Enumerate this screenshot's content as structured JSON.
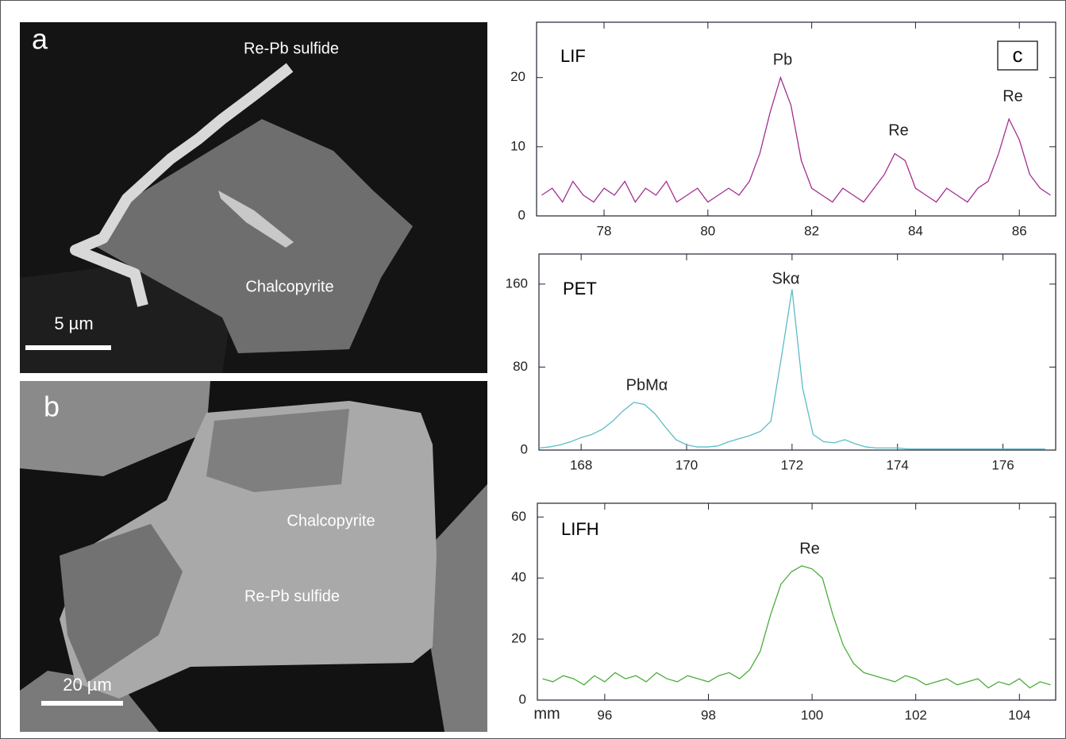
{
  "panels": {
    "a": {
      "label": "a",
      "sulfide": "Re-Pb sulfide",
      "mineral": "Chalcopyrite",
      "scale": "5 µm"
    },
    "b": {
      "label": "b",
      "mineral": "Chalcopyrite",
      "sulfide": "Re-Pb sulfide",
      "scale": "20 µm"
    },
    "c": {
      "label": "c"
    }
  },
  "chart_data": [
    {
      "type": "line",
      "annotations": [
        "Pb",
        "Re",
        "Re"
      ],
      "x": [
        76.8,
        77.0,
        77.2,
        77.4,
        77.6,
        77.8,
        78.0,
        78.2,
        78.4,
        78.6,
        78.8,
        79.0,
        79.2,
        79.4,
        79.6,
        79.8,
        80.0,
        80.2,
        80.4,
        80.6,
        80.8,
        81.0,
        81.2,
        81.4,
        81.6,
        81.8,
        82.0,
        82.2,
        82.4,
        82.6,
        82.8,
        83.0,
        83.2,
        83.4,
        83.6,
        83.8,
        84.0,
        84.2,
        84.4,
        84.6,
        84.8,
        85.0,
        85.2,
        85.4,
        85.6,
        85.8,
        86.0,
        86.2,
        86.4,
        86.6
      ],
      "series": [
        {
          "name": "LIF",
          "color": "#a3308f",
          "values": [
            3,
            4,
            2,
            5,
            3,
            2,
            4,
            3,
            5,
            2,
            4,
            3,
            5,
            2,
            3,
            4,
            2,
            3,
            4,
            3,
            5,
            9,
            15,
            20,
            16,
            8,
            4,
            3,
            2,
            4,
            3,
            2,
            4,
            6,
            9,
            8,
            4,
            3,
            2,
            4,
            3,
            2,
            4,
            5,
            9,
            14,
            11,
            6,
            4,
            3
          ]
        }
      ],
      "xlim": [
        76.7,
        86.7
      ],
      "ylim": [
        0,
        28
      ],
      "xticks": [
        78,
        80,
        82,
        84,
        86
      ],
      "yticks": [
        0,
        10,
        20
      ]
    },
    {
      "type": "line",
      "annotations": [
        "PbMα",
        "Skα"
      ],
      "x": [
        167.2,
        167.4,
        167.6,
        167.8,
        168.0,
        168.2,
        168.4,
        168.6,
        168.8,
        169.0,
        169.2,
        169.4,
        169.6,
        169.8,
        170.0,
        170.2,
        170.4,
        170.6,
        170.8,
        171.0,
        171.2,
        171.4,
        171.6,
        171.8,
        172.0,
        172.2,
        172.4,
        172.6,
        172.8,
        173.0,
        173.2,
        173.4,
        173.6,
        173.8,
        174.0,
        174.2,
        174.4,
        174.6,
        174.8,
        175.0,
        175.2,
        175.4,
        175.6,
        175.8,
        176.0,
        176.2,
        176.4,
        176.6,
        176.8
      ],
      "series": [
        {
          "name": "PET",
          "color": "#5bbcc6",
          "values": [
            2,
            3,
            5,
            8,
            12,
            15,
            20,
            28,
            38,
            46,
            44,
            35,
            22,
            10,
            5,
            3,
            3,
            4,
            8,
            11,
            14,
            18,
            28,
            90,
            155,
            60,
            15,
            8,
            7,
            10,
            6,
            3,
            2,
            2,
            2,
            1,
            1,
            1,
            1,
            1,
            1,
            1,
            1,
            1,
            1,
            1,
            1,
            1,
            1
          ]
        }
      ],
      "xlim": [
        167.2,
        177
      ],
      "ylim": [
        0,
        189
      ],
      "xticks": [
        168,
        170,
        172,
        174,
        176
      ],
      "yticks": [
        0,
        80,
        160
      ]
    },
    {
      "type": "line",
      "annotations": [
        "Re"
      ],
      "x_label": "mm",
      "x": [
        94.8,
        95.0,
        95.2,
        95.4,
        95.6,
        95.8,
        96.0,
        96.2,
        96.4,
        96.6,
        96.8,
        97.0,
        97.2,
        97.4,
        97.6,
        97.8,
        98.0,
        98.2,
        98.4,
        98.6,
        98.8,
        99.0,
        99.2,
        99.4,
        99.6,
        99.8,
        100.0,
        100.2,
        100.4,
        100.6,
        100.8,
        101.0,
        101.2,
        101.4,
        101.6,
        101.8,
        102.0,
        102.2,
        102.4,
        102.6,
        102.8,
        103.0,
        103.2,
        103.4,
        103.6,
        103.8,
        104.0,
        104.2,
        104.4,
        104.6
      ],
      "series": [
        {
          "name": "LIFH",
          "color": "#4aad3a",
          "values": [
            7,
            6,
            8,
            7,
            5,
            8,
            6,
            9,
            7,
            8,
            6,
            9,
            7,
            6,
            8,
            7,
            6,
            8,
            9,
            7,
            10,
            16,
            28,
            38,
            42,
            44,
            43,
            40,
            28,
            18,
            12,
            9,
            8,
            7,
            6,
            8,
            7,
            5,
            6,
            7,
            5,
            6,
            7,
            4,
            6,
            5,
            7,
            4,
            6,
            5
          ]
        }
      ],
      "xlim": [
        94.7,
        104.7
      ],
      "ylim": [
        0,
        64.5
      ],
      "xticks": [
        96,
        98,
        100,
        102,
        104
      ],
      "yticks": [
        0,
        20,
        40,
        60
      ]
    }
  ]
}
